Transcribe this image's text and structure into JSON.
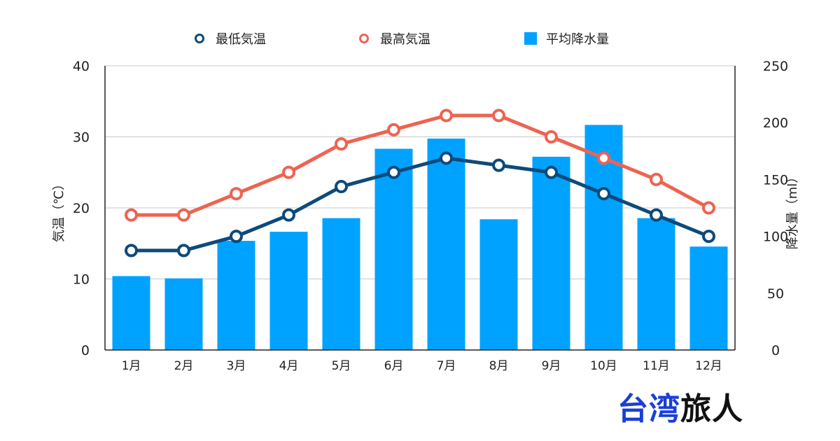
{
  "chart_data": {
    "type": "bar",
    "categories": [
      "1月",
      "2月",
      "3月",
      "4月",
      "5月",
      "6月",
      "7月",
      "8月",
      "9月",
      "10月",
      "11月",
      "12月"
    ],
    "series": [
      {
        "name": "最低気温",
        "type": "line",
        "axis": "left",
        "color": "#0e4a7a",
        "values": [
          14,
          14,
          16,
          19,
          23,
          25,
          27,
          26,
          25,
          22,
          19,
          16
        ]
      },
      {
        "name": "最高気温",
        "type": "line",
        "axis": "left",
        "color": "#ee6352",
        "values": [
          19,
          19,
          22,
          25,
          29,
          31,
          33,
          33,
          30,
          27,
          24,
          20
        ]
      },
      {
        "name": "平均降水量",
        "type": "bar",
        "axis": "right",
        "color": "#00a2ff",
        "values": [
          65,
          63,
          96,
          104,
          116,
          177,
          186,
          115,
          170,
          198,
          116,
          91
        ]
      }
    ],
    "ylabel": "気温（℃）",
    "y2label": "降水量（ml）",
    "ylim": [
      0,
      40
    ],
    "y2lim": [
      0,
      250
    ],
    "yticks": [
      "0",
      "10",
      "20",
      "30",
      "40"
    ],
    "y2ticks": [
      "0",
      "50",
      "100",
      "150",
      "200",
      "250"
    ],
    "grid": true,
    "legend": "top-center"
  },
  "brand": {
    "part1": "台湾",
    "part2": "旅人"
  }
}
